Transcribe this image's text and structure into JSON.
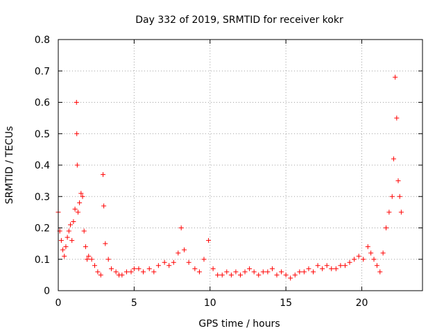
{
  "chart_data": {
    "type": "scatter",
    "title": "Day 332 of 2019, SRMTID for receiver kokr",
    "xlabel": "GPS time / hours",
    "ylabel": "SRMTID / TECUs",
    "xlim": [
      0,
      24
    ],
    "ylim": [
      0,
      0.8
    ],
    "xticks": [
      0,
      5,
      10,
      15,
      20
    ],
    "yticks": [
      0,
      0.1,
      0.2,
      0.3,
      0.4,
      0.5,
      0.6,
      0.7,
      0.8
    ],
    "xtick_labels": [
      "0",
      "5",
      "10",
      "15",
      "20"
    ],
    "ytick_labels": [
      "0",
      "0.1",
      "0.2",
      "0.3",
      "0.4",
      "0.5",
      "0.6",
      "0.7",
      "0.8"
    ],
    "grid": true,
    "marker": "+",
    "color": "#ff0000",
    "series": [
      {
        "name": "SRMTID",
        "x": [
          0.0,
          0.1,
          0.2,
          0.3,
          0.4,
          0.5,
          0.6,
          0.7,
          0.8,
          0.9,
          1.0,
          1.1,
          1.2,
          1.22,
          1.25,
          1.3,
          1.4,
          1.5,
          1.6,
          1.7,
          1.8,
          1.9,
          2.0,
          2.2,
          2.4,
          2.6,
          2.8,
          2.95,
          3.0,
          3.1,
          3.3,
          3.5,
          3.8,
          4.0,
          4.2,
          4.5,
          4.8,
          5.0,
          5.3,
          5.6,
          6.0,
          6.3,
          6.6,
          7.0,
          7.3,
          7.6,
          7.9,
          8.1,
          8.3,
          8.6,
          9.0,
          9.3,
          9.6,
          9.9,
          10.2,
          10.5,
          10.8,
          11.1,
          11.4,
          11.7,
          12.0,
          12.3,
          12.6,
          12.9,
          13.2,
          13.5,
          13.8,
          14.1,
          14.4,
          14.7,
          15.0,
          15.3,
          15.6,
          15.9,
          16.2,
          16.5,
          16.8,
          17.1,
          17.4,
          17.7,
          18.0,
          18.3,
          18.6,
          18.9,
          19.2,
          19.5,
          19.8,
          20.1,
          20.4,
          20.6,
          20.8,
          21.0,
          21.2,
          21.4,
          21.6,
          21.8,
          22.0,
          22.1,
          22.2,
          22.3,
          22.4,
          22.5,
          22.6
        ],
        "y": [
          0.25,
          0.19,
          0.16,
          0.13,
          0.11,
          0.14,
          0.17,
          0.19,
          0.21,
          0.16,
          0.22,
          0.26,
          0.6,
          0.5,
          0.4,
          0.25,
          0.28,
          0.31,
          0.3,
          0.19,
          0.14,
          0.1,
          0.11,
          0.1,
          0.08,
          0.06,
          0.05,
          0.37,
          0.27,
          0.15,
          0.1,
          0.07,
          0.06,
          0.05,
          0.05,
          0.06,
          0.06,
          0.07,
          0.07,
          0.06,
          0.07,
          0.06,
          0.08,
          0.09,
          0.08,
          0.09,
          0.12,
          0.2,
          0.13,
          0.09,
          0.07,
          0.06,
          0.1,
          0.16,
          0.07,
          0.05,
          0.05,
          0.06,
          0.05,
          0.06,
          0.05,
          0.06,
          0.07,
          0.06,
          0.05,
          0.06,
          0.06,
          0.07,
          0.05,
          0.06,
          0.05,
          0.04,
          0.05,
          0.06,
          0.06,
          0.07,
          0.06,
          0.08,
          0.07,
          0.08,
          0.07,
          0.07,
          0.08,
          0.08,
          0.09,
          0.1,
          0.11,
          0.1,
          0.14,
          0.12,
          0.1,
          0.08,
          0.06,
          0.12,
          0.2,
          0.25,
          0.3,
          0.42,
          0.68,
          0.55,
          0.35,
          0.3,
          0.25
        ]
      }
    ]
  }
}
